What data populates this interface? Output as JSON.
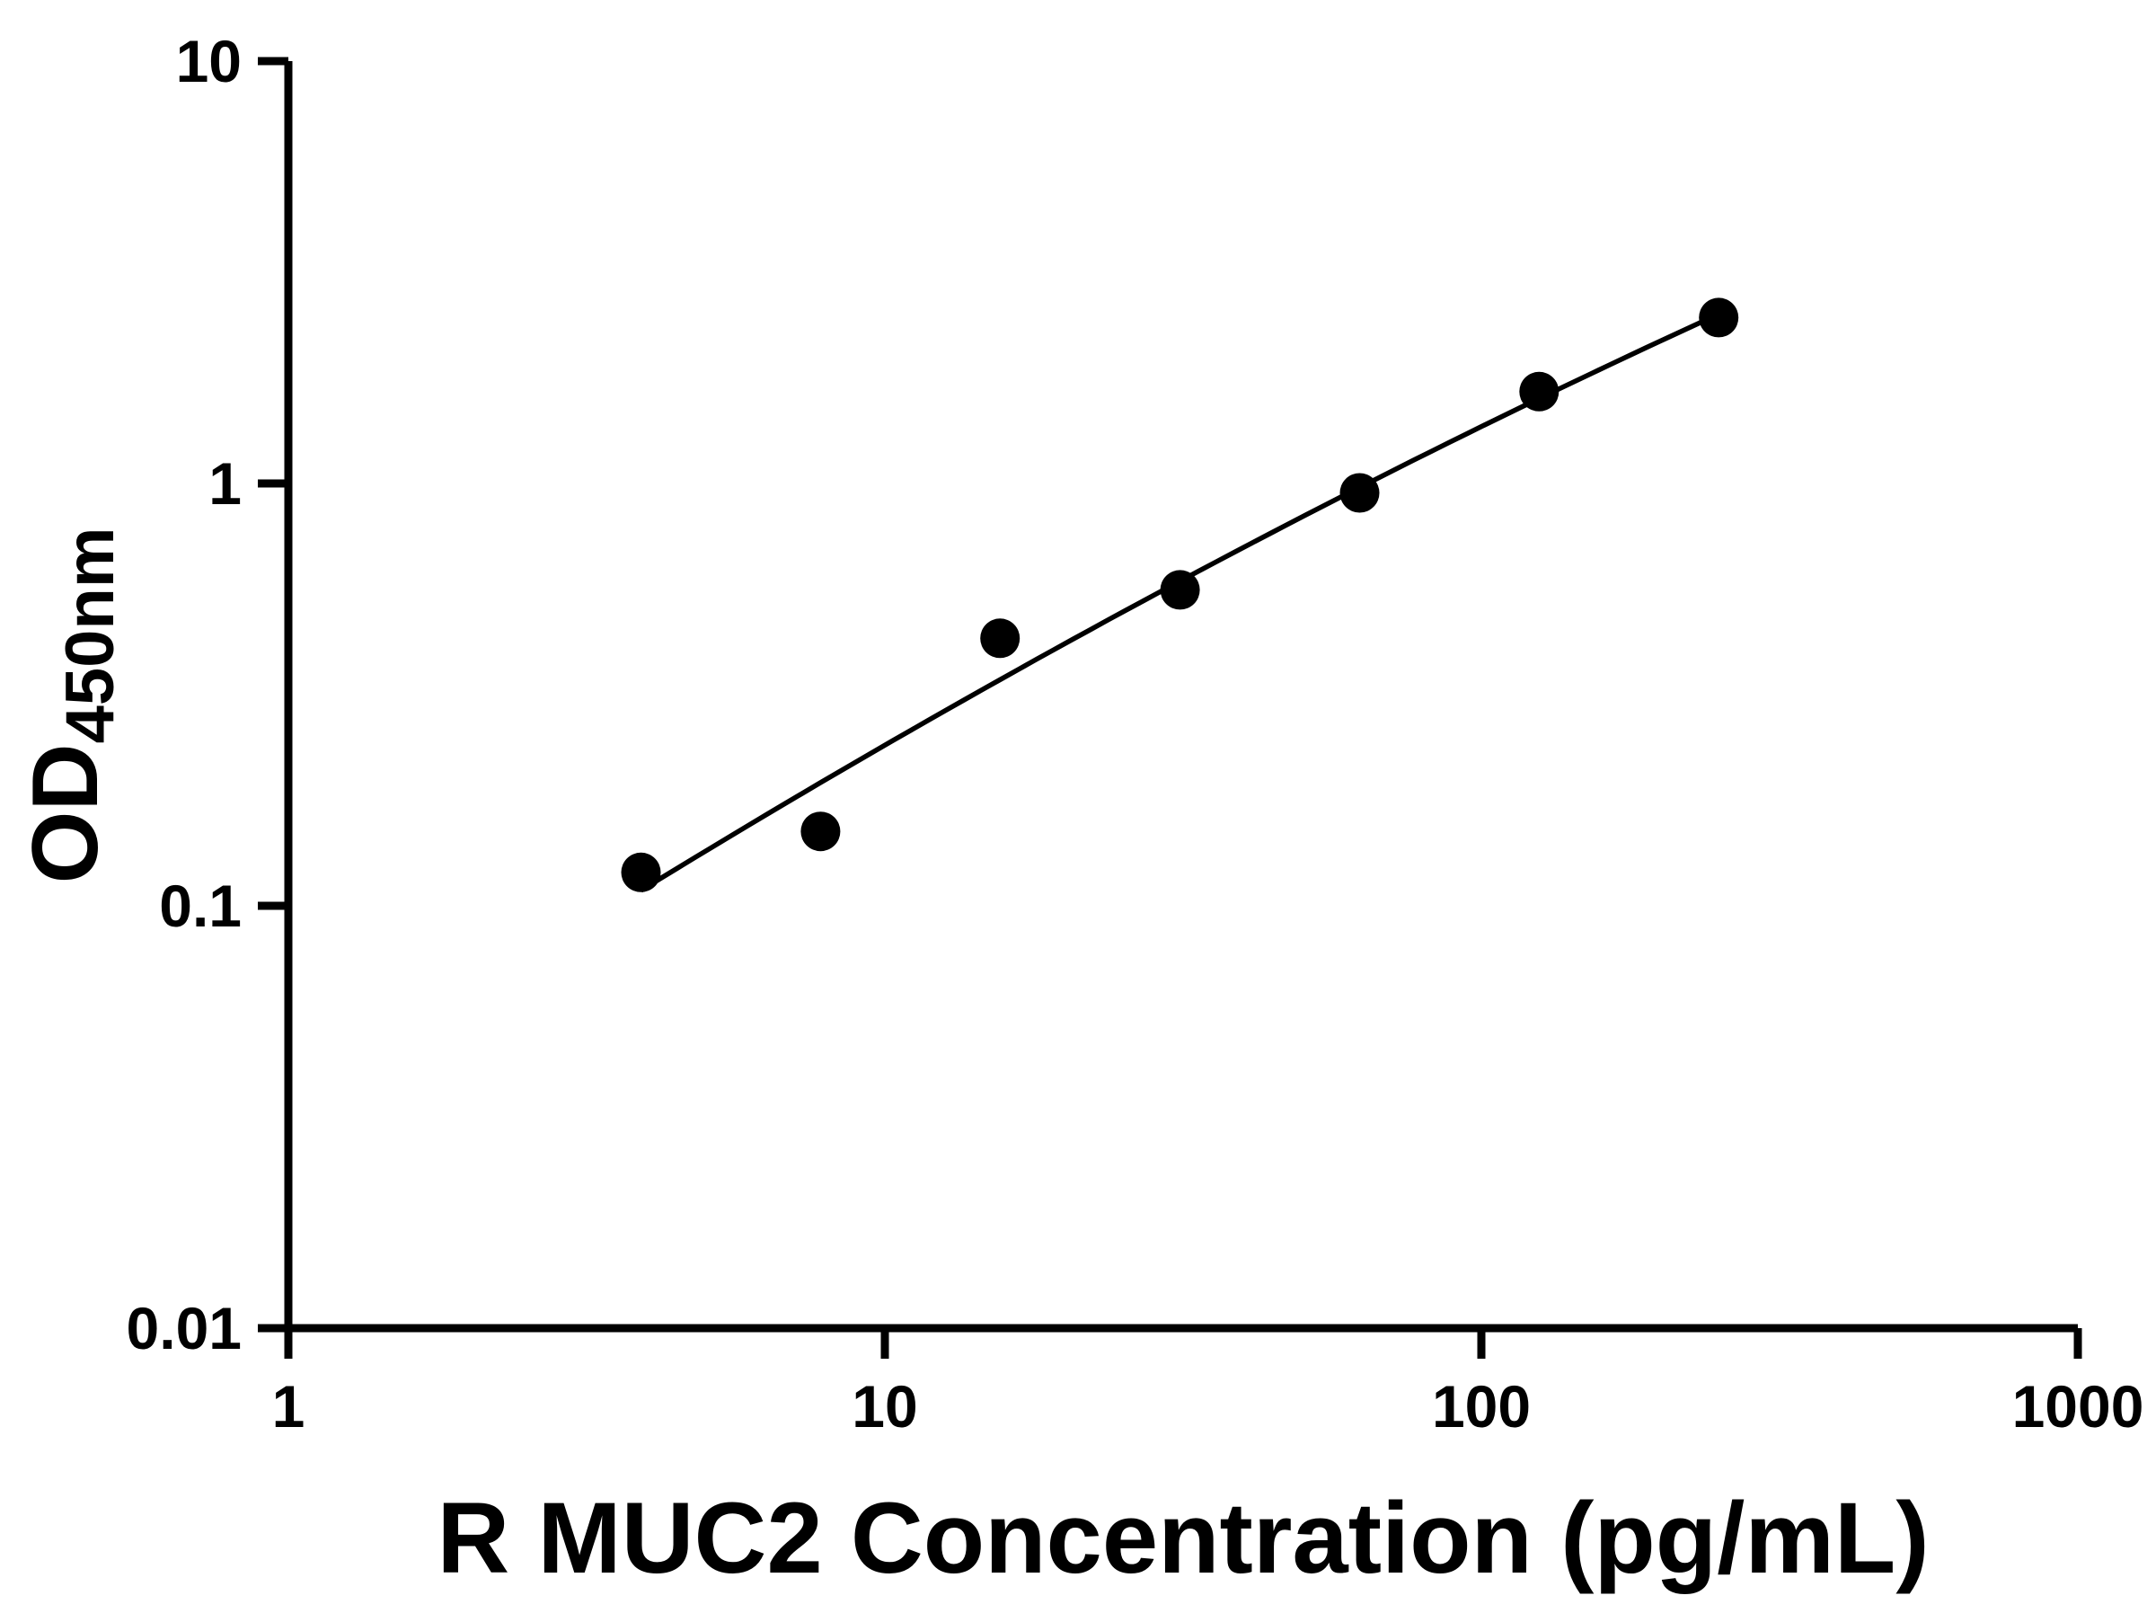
{
  "chart_data": {
    "type": "scatter",
    "title": "",
    "xlabel": "R MUC2 Concentration (pg/mL)",
    "ylabel": "OD450nm",
    "ylabel_main": "OD",
    "ylabel_sub": "450nm",
    "x_scale": "log",
    "y_scale": "log",
    "xlim": [
      1,
      1000
    ],
    "ylim": [
      0.01,
      10
    ],
    "x_ticks": [
      1,
      10,
      100,
      1000
    ],
    "y_ticks": [
      0.01,
      0.1,
      1,
      10
    ],
    "x": [
      3.9,
      7.8,
      15.6,
      31.25,
      62.5,
      125,
      250
    ],
    "y": [
      0.12,
      0.15,
      0.43,
      0.56,
      0.95,
      1.65,
      2.47
    ],
    "curve": "smooth fitted standard curve through points (log-log fit)",
    "grid": false,
    "legend": "none",
    "colors": {
      "points": "#000000",
      "curve": "#000000",
      "axis": "#000000",
      "background": "#ffffff"
    }
  }
}
